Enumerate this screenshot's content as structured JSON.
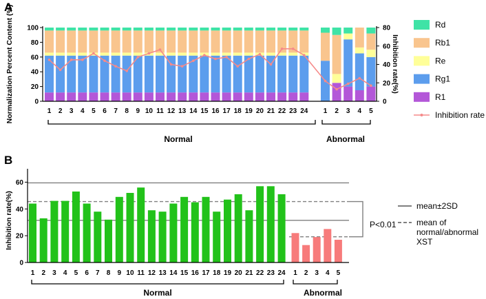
{
  "figure": {
    "panel_a_label": "A",
    "panel_b_label": "B",
    "groups": {
      "normal": "Normal",
      "abnormal": "Abnormal"
    },
    "significance": "P<0.01"
  },
  "colors": {
    "Rd": "#3fe3a6",
    "Rb1": "#f9c58e",
    "Re": "#ffff99",
    "Rg1": "#5c9ded",
    "R1": "#b357d8",
    "inhibition_line": "#f58a8a",
    "normal_bar": "#22c21a",
    "abnormal_bar": "#f77b7b",
    "ref_line": "#7f7f7f"
  },
  "chart_data": [
    {
      "type": "bar",
      "stacked": true,
      "panel": "A",
      "categories": [
        "1",
        "2",
        "3",
        "4",
        "5",
        "6",
        "7",
        "8",
        "9",
        "10",
        "11",
        "12",
        "13",
        "14",
        "15",
        "16",
        "17",
        "18",
        "19",
        "20",
        "21",
        "22",
        "23",
        "24",
        "1",
        "2",
        "3",
        "4",
        "5"
      ],
      "groups": [
        {
          "name": "Normal",
          "from": 0,
          "to": 23
        },
        {
          "name": "Abnormal",
          "from": 24,
          "to": 28
        }
      ],
      "ylabel": "Normalization Percent Content (%)",
      "ylim": [
        0,
        100
      ],
      "yticks": [
        0,
        20,
        40,
        60,
        80,
        100
      ],
      "y2label": "Inhibition rate(%)",
      "y2lim": [
        0,
        80
      ],
      "y2ticks": [
        0,
        20,
        40,
        60,
        80
      ],
      "legend_position": "right",
      "series": [
        {
          "name": "R1",
          "values": [
            12,
            12,
            12,
            12,
            12,
            12,
            12,
            12,
            12,
            12,
            12,
            12,
            12,
            12,
            12,
            12,
            12,
            12,
            12,
            12,
            12,
            12,
            12,
            12,
            0,
            25,
            20,
            15,
            20
          ]
        },
        {
          "name": "Rg1",
          "values": [
            50,
            50,
            50,
            50,
            50,
            50,
            50,
            50,
            50,
            50,
            50,
            50,
            50,
            50,
            50,
            50,
            50,
            50,
            50,
            50,
            50,
            50,
            50,
            50,
            55,
            0,
            64,
            50,
            40
          ]
        },
        {
          "name": "Re",
          "values": [
            4,
            4,
            4,
            4,
            4,
            4,
            4,
            4,
            4,
            4,
            4,
            4,
            4,
            4,
            4,
            4,
            4,
            4,
            4,
            4,
            4,
            4,
            4,
            4,
            0,
            12,
            8,
            8,
            10
          ]
        },
        {
          "name": "Rb1",
          "values": [
            30,
            30,
            30,
            30,
            30,
            30,
            30,
            30,
            30,
            30,
            30,
            30,
            30,
            30,
            30,
            30,
            30,
            30,
            30,
            30,
            30,
            30,
            30,
            30,
            38,
            53,
            0,
            27,
            22
          ]
        },
        {
          "name": "Rd",
          "values": [
            4,
            4,
            4,
            4,
            4,
            4,
            4,
            4,
            4,
            4,
            4,
            4,
            4,
            4,
            4,
            4,
            4,
            4,
            4,
            4,
            4,
            4,
            4,
            4,
            7,
            10,
            8,
            0,
            8
          ]
        }
      ],
      "line": {
        "name": "Inhibition rate",
        "axis": "right",
        "values": [
          45,
          34,
          45,
          45,
          52,
          44,
          38,
          33,
          48,
          52,
          56,
          40,
          38,
          44,
          50,
          46,
          48,
          38,
          46,
          51,
          40,
          57,
          57,
          50,
          22,
          13,
          19,
          25,
          17
        ]
      }
    },
    {
      "type": "bar",
      "panel": "B",
      "categories": [
        "1",
        "2",
        "3",
        "4",
        "5",
        "6",
        "7",
        "8",
        "9",
        "10",
        "11",
        "12",
        "13",
        "14",
        "15",
        "16",
        "17",
        "18",
        "19",
        "20",
        "21",
        "22",
        "23",
        "24",
        "1",
        "2",
        "3",
        "4",
        "5"
      ],
      "groups": [
        {
          "name": "Normal",
          "from": 0,
          "to": 23
        },
        {
          "name": "Abnormal",
          "from": 24,
          "to": 28
        }
      ],
      "ylabel": "Inhibition rate(%)",
      "ylim": [
        0,
        70
      ],
      "yticks": [
        0,
        20,
        40,
        60
      ],
      "values": [
        44,
        33,
        46,
        46,
        53,
        44,
        38,
        32,
        49,
        52,
        56,
        39,
        38,
        44,
        49,
        45,
        49,
        38,
        47,
        51,
        39,
        57,
        57,
        51,
        22,
        13,
        19,
        25,
        17
      ],
      "reference_lines": [
        {
          "label": "mean±2SD",
          "style": "solid",
          "values": [
            59.5,
            31.5
          ]
        },
        {
          "label": "mean of normal/abnormal XST",
          "style": "dashed",
          "values": [
            45.5,
            19.2
          ]
        }
      ]
    }
  ]
}
